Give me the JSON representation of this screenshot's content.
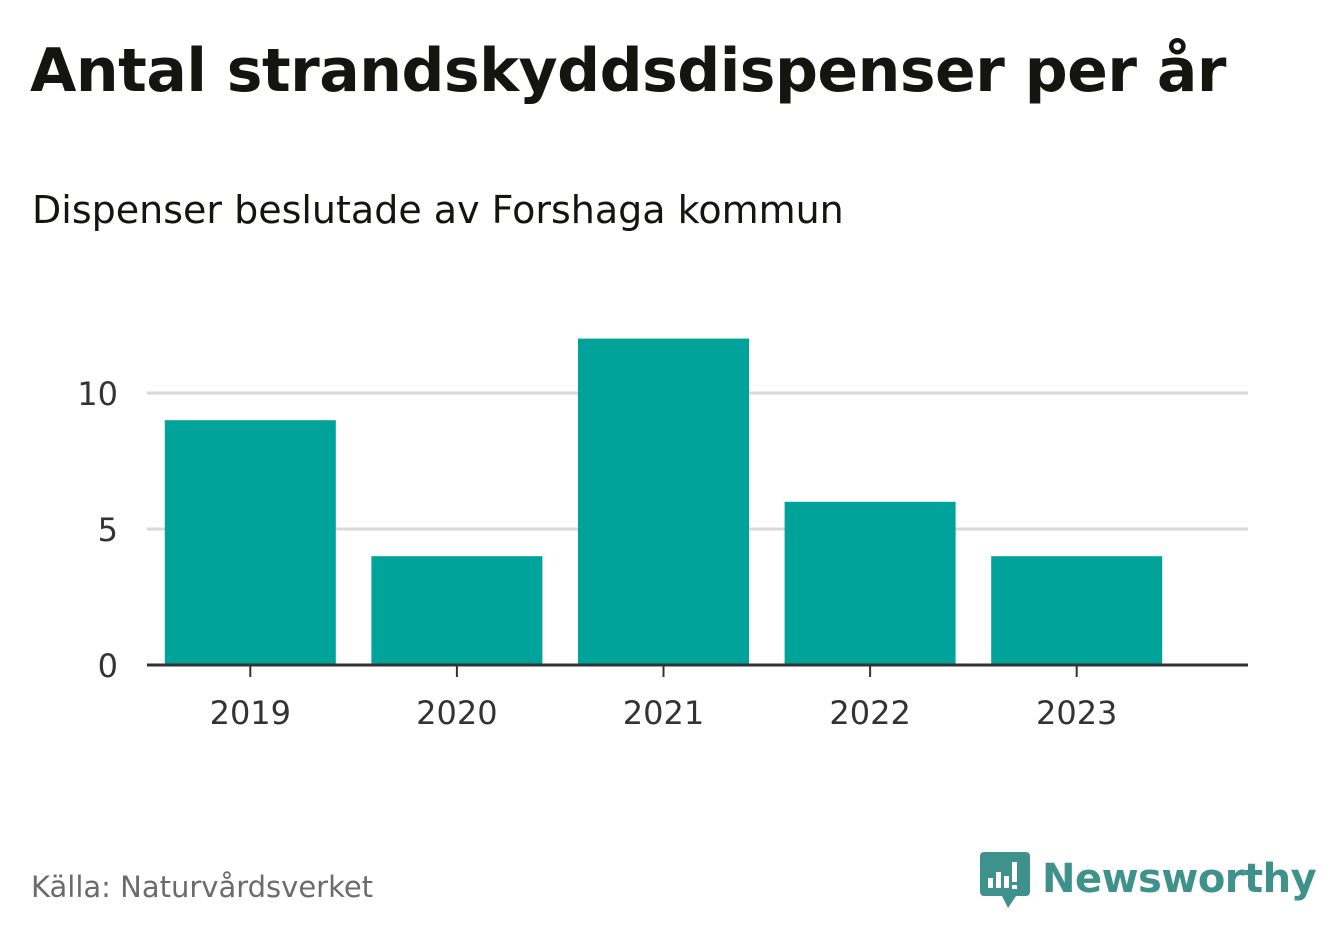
{
  "colors": {
    "bar": "#00a39a",
    "grid": "#d9d9d9",
    "axis": "#333333",
    "text": "#151510",
    "source": "#6b6b6b",
    "brand": "#3f918b"
  },
  "chart_data": {
    "type": "bar",
    "title": "Antal strandskyddsdispenser per år",
    "subtitle": "Dispenser beslutade av Forshaga kommun",
    "categories": [
      "2019",
      "2020",
      "2021",
      "2022",
      "2023"
    ],
    "values": [
      9,
      4,
      12,
      6,
      4
    ],
    "xlabel": "",
    "ylabel": "",
    "ylim": [
      0,
      12
    ],
    "yticks": [
      0,
      5,
      10
    ],
    "grid": true,
    "legend": "none"
  },
  "footer": {
    "source": "Källa: Naturvårdsverket",
    "brand": "Newsworthy",
    "brand_icon": "chat-bars-icon"
  }
}
